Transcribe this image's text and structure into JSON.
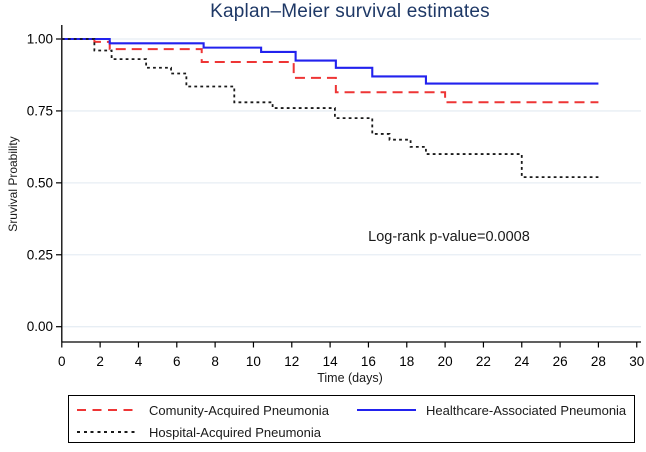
{
  "page": {
    "background": "#ffffff"
  },
  "chart_data": {
    "type": "line",
    "subtype": "kaplan-meier-step-curves",
    "title": "Kaplan–Meier survival estimates",
    "title_color": "#1e3866",
    "xlabel": "Time (days)",
    "ylabel": "Sruvival Proability",
    "annotation": {
      "text": "Log-rank p-value=0.0008"
    },
    "xlim": [
      0,
      30
    ],
    "ylim": [
      0.0,
      1.0
    ],
    "xticks": [
      0,
      2,
      4,
      6,
      8,
      10,
      12,
      14,
      16,
      18,
      20,
      22,
      24,
      26,
      28,
      30
    ],
    "yticks": [
      {
        "value": 0.0,
        "label": "0.00"
      },
      {
        "value": 0.25,
        "label": "0.25"
      },
      {
        "value": 0.5,
        "label": "0.50"
      },
      {
        "value": 0.75,
        "label": "0.75"
      },
      {
        "value": 1.0,
        "label": "1.00"
      }
    ],
    "grid": "horizontal",
    "gridline_color": "#e7eef4",
    "axis_color": "#000000",
    "legend_position": "bottom-box",
    "series": [
      {
        "id": "community",
        "name": "Comunity-Acquired Pneumonia",
        "color": "#ee3535",
        "dash": "dashed",
        "end_day": 28,
        "steps": [
          [
            0,
            1.0
          ],
          [
            1.7,
            0.99
          ],
          [
            2.5,
            0.965
          ],
          [
            7.3,
            0.92
          ],
          [
            12.1,
            0.865
          ],
          [
            14.3,
            0.815
          ],
          [
            20,
            0.78
          ]
        ]
      },
      {
        "id": "healthcare",
        "name": "Healthcare-Associated Pneumonia",
        "color": "#2222ee",
        "dash": "solid",
        "end_day": 28,
        "steps": [
          [
            0,
            1.0
          ],
          [
            2.5,
            0.985
          ],
          [
            7.4,
            0.97
          ],
          [
            10.4,
            0.955
          ],
          [
            12.2,
            0.925
          ],
          [
            14.3,
            0.9
          ],
          [
            16.2,
            0.87
          ],
          [
            19,
            0.845
          ]
        ]
      },
      {
        "id": "hospital",
        "name": "Hospital-Acquired Pneumonia",
        "color": "#1a1a1a",
        "dash": "dotted",
        "end_day": 28,
        "steps": [
          [
            0,
            1.0
          ],
          [
            1.7,
            0.96
          ],
          [
            2.6,
            0.93
          ],
          [
            4.4,
            0.9
          ],
          [
            5.7,
            0.88
          ],
          [
            6.5,
            0.835
          ],
          [
            9,
            0.78
          ],
          [
            11,
            0.76
          ],
          [
            14.25,
            0.725
          ],
          [
            16.2,
            0.67
          ],
          [
            17.1,
            0.65
          ],
          [
            18.2,
            0.625
          ],
          [
            19,
            0.6
          ],
          [
            24,
            0.52
          ]
        ]
      }
    ]
  }
}
